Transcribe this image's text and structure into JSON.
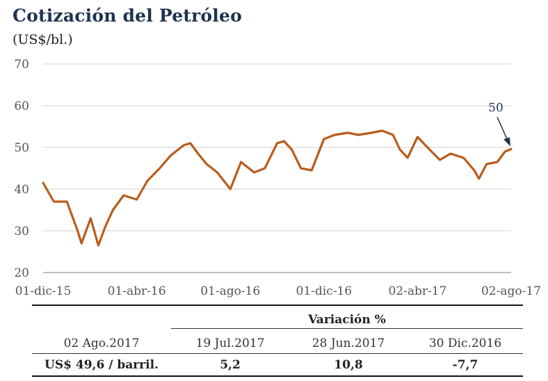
{
  "title": "Cotización del Petróleo",
  "subtitle": "(US$/bl.)",
  "chart_data": {
    "type": "line",
    "title": "Cotización del Petróleo",
    "ylabel": "(US$/bl.)",
    "ylim": [
      20,
      70
    ],
    "yticks": [
      "20",
      "30",
      "40",
      "50",
      "60",
      "70"
    ],
    "xticks": [
      "01-dic-15",
      "01-abr-16",
      "01-ago-16",
      "01-dic-16",
      "02-abr-17",
      "02-ago-17"
    ],
    "x": [
      "2015-12-01",
      "2015-12-15",
      "2016-01-01",
      "2016-01-15",
      "2016-01-20",
      "2016-02-01",
      "2016-02-11",
      "2016-02-20",
      "2016-03-01",
      "2016-03-15",
      "2016-04-01",
      "2016-04-15",
      "2016-05-01",
      "2016-05-15",
      "2016-06-01",
      "2016-06-10",
      "2016-06-20",
      "2016-07-01",
      "2016-07-15",
      "2016-08-01",
      "2016-08-15",
      "2016-09-01",
      "2016-09-15",
      "2016-10-01",
      "2016-10-10",
      "2016-10-20",
      "2016-11-01",
      "2016-11-15",
      "2016-12-01",
      "2016-12-15",
      "2017-01-01",
      "2017-01-15",
      "2017-02-01",
      "2017-02-15",
      "2017-03-01",
      "2017-03-10",
      "2017-03-20",
      "2017-04-02",
      "2017-04-15",
      "2017-05-01",
      "2017-05-15",
      "2017-06-01",
      "2017-06-15",
      "2017-06-21",
      "2017-07-01",
      "2017-07-15",
      "2017-07-25",
      "2017-08-02"
    ],
    "y": [
      41.5,
      37,
      37,
      30,
      27,
      33,
      26.5,
      31,
      35,
      38.5,
      37.5,
      42,
      45,
      48,
      50.5,
      51,
      48.5,
      46,
      44,
      40,
      46.5,
      44,
      45,
      51,
      51.5,
      49.5,
      45,
      44.5,
      52,
      53,
      53.5,
      53,
      53.5,
      54,
      53,
      49.5,
      47.5,
      52.5,
      50,
      47,
      48.5,
      47.5,
      44.5,
      42.5,
      46,
      46.5,
      49,
      49.6
    ],
    "annotation": "50"
  },
  "table": {
    "variation_header": "Variación %",
    "col0_header": "02 Ago.2017",
    "col1_header": "19 Jul.2017",
    "col2_header": "28 Jun.2017",
    "col3_header": "30 Dic.2016",
    "col0_value": "US$ 49,6 / barril.",
    "col1_value": "5,2",
    "col2_value": "10,8",
    "col3_value": "-7,7"
  },
  "colors": {
    "line": "#b85c1c",
    "title": "#1f3350",
    "grid": "#d0d0d0",
    "arrow": "#1f3350"
  }
}
